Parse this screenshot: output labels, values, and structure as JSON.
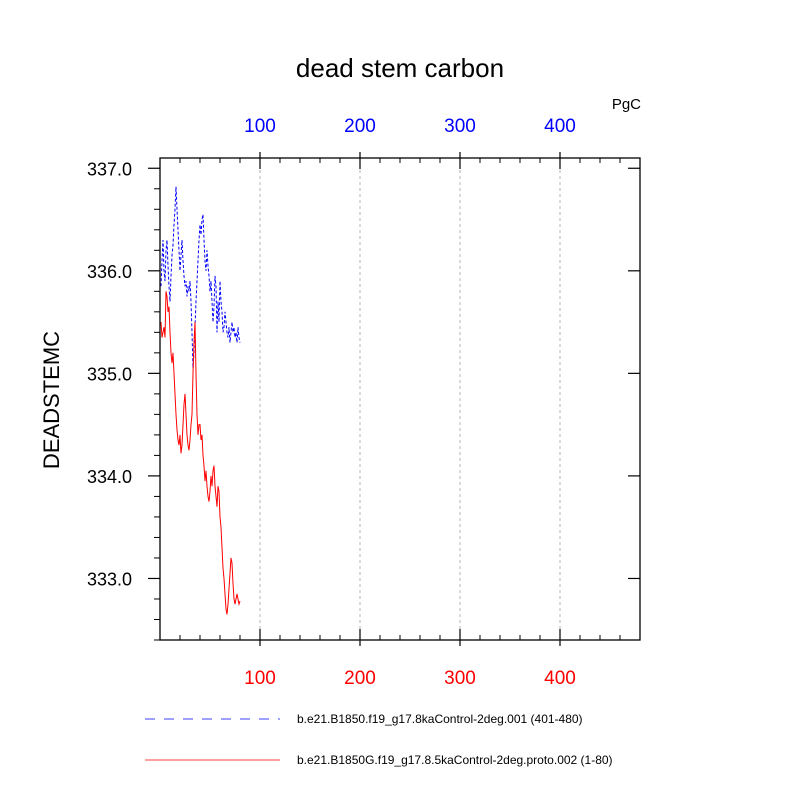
{
  "chart_data": {
    "type": "line",
    "title": "dead stem carbon",
    "ylabel": "DEADSTEMC",
    "units": "PgC",
    "xlim": [
      0,
      480
    ],
    "ylim": [
      332.4,
      337.1
    ],
    "x_ticks": [
      100,
      200,
      300,
      400
    ],
    "x_tick_labels": [
      "100",
      "200",
      "300",
      "400"
    ],
    "y_ticks": [
      333.0,
      334.0,
      335.0,
      336.0,
      337.0
    ],
    "y_tick_labels": [
      "333.0",
      "334.0",
      "335.0",
      "336.0",
      "337.0"
    ],
    "top_axis_color": "#0000ff",
    "bottom_axis_color": "#ff0000",
    "grid": "vertical dotted at x ticks",
    "legend_placement": "bottom",
    "series": [
      {
        "name": "b.e21.B1850.f19_g17.8kaControl-2deg.001 (401-480)",
        "color": "#0000ff",
        "style": "dashed",
        "x": [
          1,
          2,
          3,
          4,
          5,
          6,
          7,
          8,
          9,
          10,
          11,
          12,
          13,
          14,
          15,
          16,
          17,
          18,
          19,
          20,
          21,
          22,
          23,
          24,
          25,
          26,
          27,
          28,
          29,
          30,
          31,
          32,
          33,
          34,
          35,
          36,
          37,
          38,
          39,
          40,
          41,
          42,
          43,
          44,
          45,
          46,
          47,
          48,
          49,
          50,
          51,
          52,
          53,
          54,
          55,
          56,
          57,
          58,
          59,
          60,
          61,
          62,
          63,
          64,
          65,
          66,
          67,
          68,
          69,
          70,
          71,
          72,
          73,
          74,
          75,
          76,
          77,
          78,
          79,
          80
        ],
        "values": [
          335.85,
          336.1,
          336.3,
          336.0,
          335.9,
          336.2,
          336.3,
          336.05,
          335.85,
          335.7,
          335.95,
          336.15,
          336.25,
          336.45,
          336.6,
          336.82,
          336.6,
          336.4,
          336.2,
          336.0,
          336.15,
          336.3,
          336.1,
          335.95,
          335.85,
          335.9,
          335.75,
          335.85,
          335.8,
          335.9,
          335.7,
          335.4,
          335.05,
          335.2,
          335.45,
          335.7,
          335.9,
          336.1,
          336.3,
          336.45,
          336.35,
          336.5,
          336.55,
          336.3,
          336.1,
          336.0,
          336.2,
          336.05,
          335.95,
          335.8,
          335.9,
          335.7,
          335.5,
          335.65,
          335.95,
          335.85,
          335.4,
          335.7,
          335.5,
          335.9,
          335.7,
          335.6,
          335.4,
          335.45,
          335.6,
          335.5,
          335.4,
          335.35,
          335.45,
          335.3,
          335.4,
          335.5,
          335.4,
          335.45,
          335.35,
          335.4,
          335.3,
          335.45,
          335.35,
          335.3
        ]
      },
      {
        "name": "b.e21.B1850G.f19_g17.8.5kaControl-2deg.proto.002 (1-80)",
        "color": "#ff0000",
        "style": "solid",
        "x": [
          1,
          2,
          3,
          4,
          5,
          6,
          7,
          8,
          9,
          10,
          11,
          12,
          13,
          14,
          15,
          16,
          17,
          18,
          19,
          20,
          21,
          22,
          23,
          24,
          25,
          26,
          27,
          28,
          29,
          30,
          31,
          32,
          33,
          34,
          35,
          36,
          37,
          38,
          39,
          40,
          41,
          42,
          43,
          44,
          45,
          46,
          47,
          48,
          49,
          50,
          51,
          52,
          53,
          54,
          55,
          56,
          57,
          58,
          59,
          60,
          61,
          62,
          63,
          64,
          65,
          66,
          67,
          68,
          69,
          70,
          71,
          72,
          73,
          74,
          75,
          76,
          77,
          78,
          79,
          80
        ],
        "values": [
          335.5,
          335.35,
          335.4,
          335.45,
          335.35,
          335.8,
          335.75,
          335.6,
          335.65,
          335.4,
          335.2,
          335.1,
          335.2,
          335.0,
          334.8,
          334.6,
          334.45,
          334.35,
          334.3,
          334.4,
          334.22,
          334.3,
          334.5,
          334.7,
          334.8,
          334.6,
          334.4,
          334.3,
          334.25,
          334.35,
          334.5,
          334.6,
          335.0,
          335.3,
          335.5,
          335.0,
          334.6,
          334.4,
          334.5,
          334.5,
          334.35,
          334.4,
          334.2,
          334.1,
          333.95,
          334.05,
          333.9,
          333.8,
          333.75,
          333.85,
          334.0,
          333.9,
          334.05,
          334.1,
          333.9,
          333.8,
          333.7,
          333.9,
          333.85,
          333.6,
          333.5,
          333.3,
          333.1,
          333.0,
          332.85,
          332.7,
          332.65,
          332.75,
          332.9,
          333.05,
          333.2,
          333.15,
          332.95,
          332.8,
          332.75,
          332.8,
          332.85,
          332.8,
          332.75,
          332.78
        ]
      }
    ]
  }
}
